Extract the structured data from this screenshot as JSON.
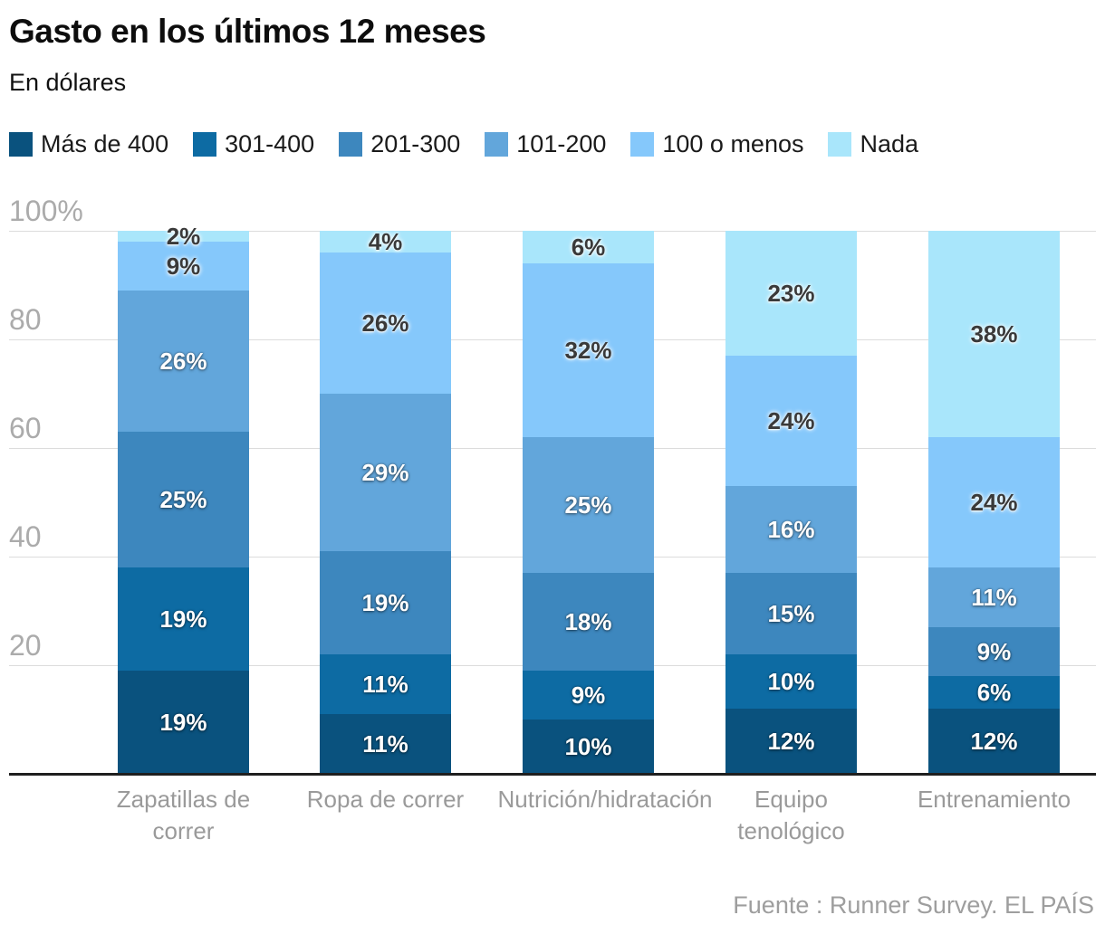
{
  "footer": {
    "source": "Fuente : Runner Survey. EL PAÍS"
  },
  "chart_data": {
    "type": "bar",
    "stacked": true,
    "title": "Gasto en los últimos 12 meses",
    "subtitle": "En dólares",
    "categories": [
      "Zapatillas de correr",
      "Ropa de correr",
      "Nutrición/hidratación",
      "Equipo tenológico",
      "Entrenamiento"
    ],
    "series": [
      {
        "name": "Más de 400",
        "color": "#0a527e",
        "label_style": "light",
        "values": [
          19,
          11,
          10,
          12,
          12
        ]
      },
      {
        "name": "301-400",
        "color": "#0d6ba3",
        "label_style": "light",
        "values": [
          19,
          11,
          9,
          10,
          6
        ]
      },
      {
        "name": "201-300",
        "color": "#3d87be",
        "label_style": "light",
        "values": [
          25,
          19,
          18,
          15,
          9
        ]
      },
      {
        "name": "101-200",
        "color": "#62a6db",
        "label_style": "light",
        "values": [
          26,
          29,
          25,
          16,
          11
        ]
      },
      {
        "name": "100 o menos",
        "color": "#85c8fb",
        "label_style": "dark",
        "values": [
          9,
          26,
          32,
          24,
          24
        ]
      },
      {
        "name": "Nada",
        "color": "#a9e6fb",
        "label_style": "dark",
        "values": [
          2,
          4,
          6,
          23,
          38
        ]
      }
    ],
    "value_suffix": "%",
    "ylim": [
      0,
      100
    ],
    "yticks": [
      {
        "label": "100%",
        "value": 100
      },
      {
        "label": "80",
        "value": 80
      },
      {
        "label": "60",
        "value": 60
      },
      {
        "label": "40",
        "value": 40
      },
      {
        "label": "20",
        "value": 20
      }
    ],
    "grid": true,
    "legend_position": "top",
    "colors": {
      "grid": "#dcdcdc",
      "axis_line": "#1f1f1f",
      "tick_text": "#ababab",
      "category_text": "#9a9a9a",
      "source_text": "#9e9e9e"
    }
  }
}
